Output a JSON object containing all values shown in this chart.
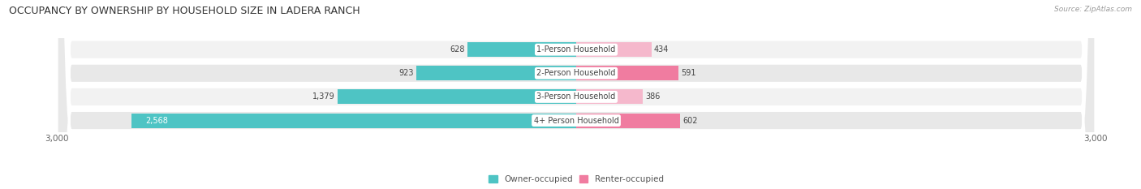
{
  "title": "OCCUPANCY BY OWNERSHIP BY HOUSEHOLD SIZE IN LADERA RANCH",
  "source": "Source: ZipAtlas.com",
  "categories": [
    "1-Person Household",
    "2-Person Household",
    "3-Person Household",
    "4+ Person Household"
  ],
  "owner_values": [
    628,
    923,
    1379,
    2568
  ],
  "renter_values": [
    434,
    591,
    386,
    602
  ],
  "max_axis": 3000,
  "owner_color": "#4ec4c4",
  "renter_color": "#f07ca0",
  "renter_colors": [
    "#f5b8cc",
    "#f07ca0",
    "#f5b8cc",
    "#f07ca0"
  ],
  "row_bg_colors": [
    "#f2f2f2",
    "#e8e8e8"
  ],
  "title_fontsize": 9,
  "label_fontsize": 7,
  "tick_fontsize": 7.5,
  "legend_fontsize": 7.5,
  "source_fontsize": 6.5,
  "bar_height": 0.62,
  "figsize": [
    14.06,
    2.33
  ],
  "dpi": 100
}
